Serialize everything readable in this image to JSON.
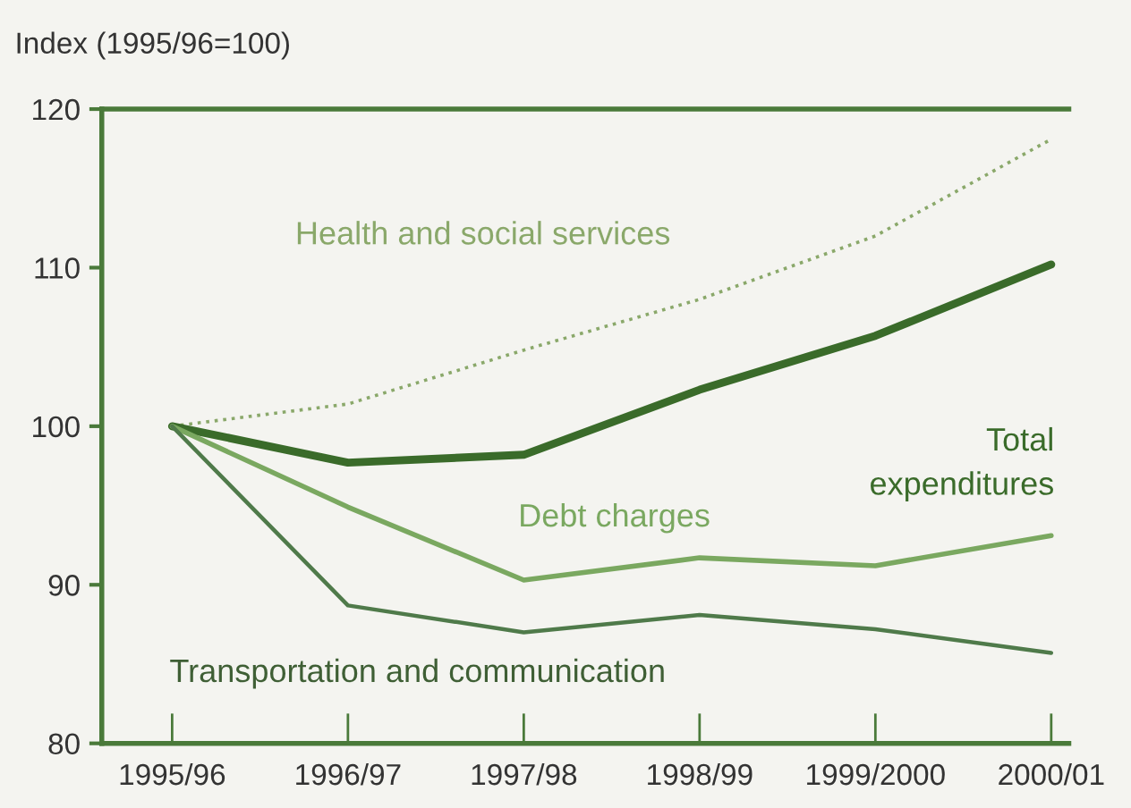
{
  "chart_data": {
    "type": "line",
    "ylabel": "Index (1995/96=100)",
    "categories": [
      "1995/96",
      "1996/97",
      "1997/98",
      "1998/99",
      "1999/2000",
      "2000/01"
    ],
    "ylim": [
      80,
      120
    ],
    "yticks": [
      80,
      90,
      100,
      110,
      120
    ],
    "grid": false,
    "legend": false,
    "marker": "none",
    "series": [
      {
        "name": "Health and social services",
        "color": "#8aa86a",
        "line_style": "dotted",
        "values": [
          100,
          101.4,
          104.8,
          108.0,
          112.0,
          118.1
        ]
      },
      {
        "name": "Total expenditures",
        "color": "#3a6b2a",
        "values": [
          100,
          97.7,
          98.2,
          102.3,
          105.7,
          110.2
        ]
      },
      {
        "name": "Debt charges",
        "color": "#7aa860",
        "values": [
          100,
          94.9,
          90.3,
          91.7,
          91.2,
          93.1
        ]
      },
      {
        "name": "Transportation and communication",
        "color": "#4f7a4a",
        "values": [
          100,
          88.7,
          87.0,
          88.1,
          87.2,
          85.7
        ]
      }
    ]
  }
}
